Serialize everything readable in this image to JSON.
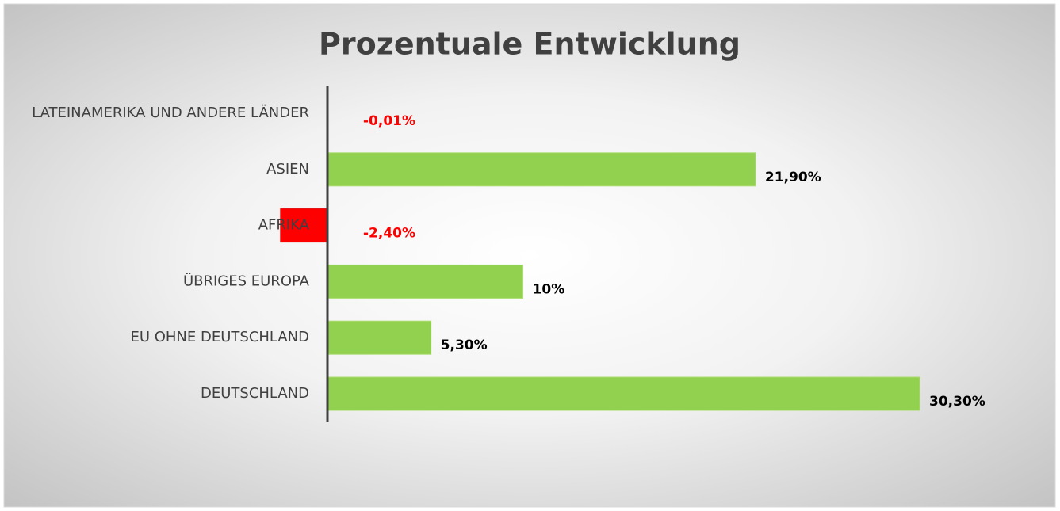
{
  "chart_data": {
    "type": "bar",
    "orientation": "horizontal",
    "title": "Prozentuale Entwicklung",
    "categories": [
      "LATEINAMERIKA UND ANDERE LÄNDER",
      "ASIEN",
      "AFRIKA",
      "ÜBRIGES EUROPA",
      "EU OHNE DEUTSCHLAND",
      "DEUTSCHLAND"
    ],
    "values": [
      -0.01,
      21.9,
      -2.4,
      10,
      5.3,
      30.3
    ],
    "value_labels": [
      "-0,01%",
      "21,90%",
      "-2,40%",
      "10%",
      "5,30%",
      "30,30%"
    ],
    "color": "#92d050",
    "negative_color": "#ff0000",
    "xlim": [
      -5,
      35
    ]
  }
}
